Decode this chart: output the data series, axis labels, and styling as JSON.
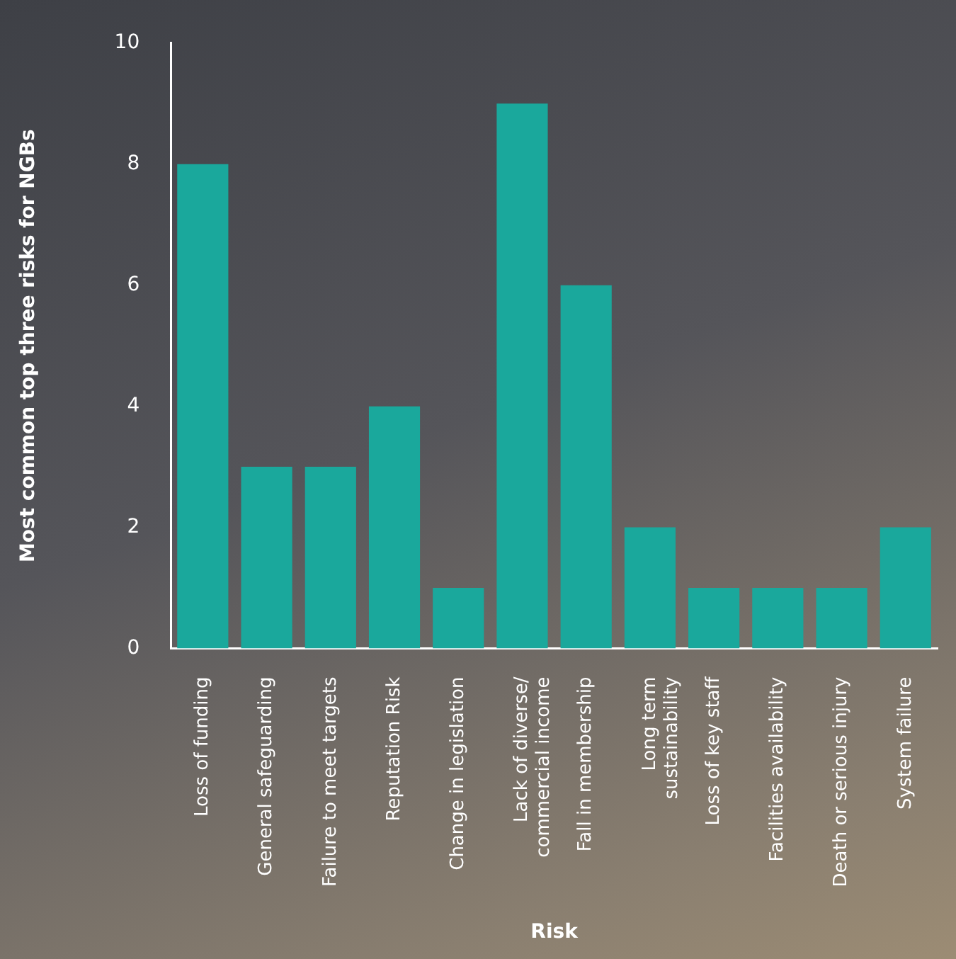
{
  "chart_data": {
    "type": "bar",
    "xlabel": "Risk",
    "ylabel": "Most common top three risks for NGBs",
    "categories": [
      "Loss of funding",
      "General safeguarding",
      "Failure to meet targets",
      "Reputation Risk",
      "Change in legislation",
      "Lack of diverse/\ncommercial income",
      "Fall in membership",
      "Long term\nsustainability",
      "Loss of key staff",
      "Facilities availability",
      "Death or serious injury",
      "System failure"
    ],
    "values": [
      8,
      3,
      3,
      4,
      1,
      9,
      6,
      2,
      1,
      1,
      1,
      2
    ],
    "color": "#1aa89c",
    "ylim": [
      0,
      10
    ],
    "yticks": [
      0,
      2,
      4,
      6,
      8,
      10
    ],
    "grid": false,
    "legend": false
  }
}
